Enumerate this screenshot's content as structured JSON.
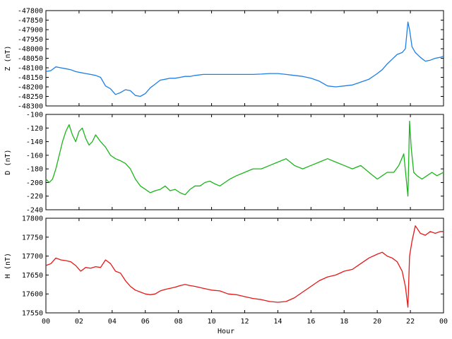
{
  "chart_data": [
    {
      "type": "line",
      "ylabel": "Z (nT)",
      "ylim": [
        -48300,
        -47800
      ],
      "yticks": [
        "-47800",
        "-47850",
        "-47900",
        "-47950",
        "-48000",
        "-48050",
        "-48100",
        "-48150",
        "-48200",
        "-48250",
        "-48300"
      ],
      "color": "#1e7fe6",
      "x": [
        0,
        0.3,
        0.6,
        0.9,
        1.2,
        1.5,
        1.8,
        2.1,
        2.4,
        2.7,
        3.0,
        3.3,
        3.6,
        3.9,
        4.2,
        4.5,
        4.8,
        5.1,
        5.4,
        5.7,
        6.0,
        6.3,
        6.6,
        6.9,
        7.2,
        7.5,
        7.8,
        8.1,
        8.4,
        8.7,
        9.0,
        9.5,
        10,
        10.5,
        11,
        11.5,
        12,
        12.5,
        13,
        13.5,
        14,
        14.5,
        15,
        15.5,
        16,
        16.5,
        17,
        17.5,
        18,
        18.5,
        19,
        19.5,
        20,
        20.3,
        20.6,
        20.9,
        21.2,
        21.5,
        21.7,
        21.85,
        21.95,
        22.1,
        22.3,
        22.6,
        22.9,
        23.2,
        23.5,
        23.8,
        24
      ],
      "values": [
        -48120,
        -48115,
        -48095,
        -48100,
        -48105,
        -48110,
        -48120,
        -48125,
        -48130,
        -48135,
        -48140,
        -48150,
        -48195,
        -48210,
        -48240,
        -48230,
        -48215,
        -48220,
        -48245,
        -48250,
        -48235,
        -48205,
        -48185,
        -48165,
        -48160,
        -48155,
        -48155,
        -48150,
        -48145,
        -48145,
        -48140,
        -48135,
        -48135,
        -48135,
        -48135,
        -48135,
        -48135,
        -48135,
        -48133,
        -48130,
        -48130,
        -48135,
        -48140,
        -48145,
        -48155,
        -48170,
        -48195,
        -48200,
        -48195,
        -48190,
        -48175,
        -48160,
        -48130,
        -48110,
        -48080,
        -48055,
        -48030,
        -48020,
        -48000,
        -47860,
        -47900,
        -47990,
        -48020,
        -48045,
        -48065,
        -48060,
        -48050,
        -48045,
        -48040
      ]
    },
    {
      "type": "line",
      "ylabel": "D (nT)",
      "ylim": [
        -240,
        -100
      ],
      "yticks": [
        "-100",
        "-120",
        "-140",
        "-160",
        "-180",
        "-200",
        "-220",
        "-240"
      ],
      "color": "#1ab51a",
      "x": [
        0,
        0.2,
        0.4,
        0.6,
        0.8,
        1.0,
        1.2,
        1.4,
        1.6,
        1.8,
        2.0,
        2.2,
        2.4,
        2.6,
        2.8,
        3.0,
        3.3,
        3.6,
        3.9,
        4.2,
        4.5,
        4.8,
        5.1,
        5.4,
        5.7,
        6.0,
        6.3,
        6.6,
        6.9,
        7.2,
        7.5,
        7.8,
        8.1,
        8.4,
        8.7,
        9.0,
        9.3,
        9.6,
        9.9,
        10.2,
        10.5,
        10.8,
        11.1,
        11.5,
        12,
        12.5,
        13,
        13.5,
        14,
        14.5,
        15,
        15.5,
        16,
        16.5,
        17,
        17.5,
        18,
        18.5,
        19,
        19.5,
        20,
        20.3,
        20.6,
        21,
        21.3,
        21.6,
        21.75,
        21.85,
        21.95,
        22.05,
        22.2,
        22.4,
        22.7,
        23,
        23.3,
        23.6,
        24
      ],
      "values": [
        -195,
        -200,
        -195,
        -180,
        -160,
        -140,
        -125,
        -115,
        -130,
        -140,
        -125,
        -120,
        -135,
        -145,
        -140,
        -130,
        -140,
        -148,
        -160,
        -165,
        -168,
        -172,
        -180,
        -195,
        -205,
        -210,
        -215,
        -212,
        -210,
        -205,
        -212,
        -210,
        -215,
        -218,
        -210,
        -205,
        -205,
        -200,
        -198,
        -202,
        -205,
        -200,
        -195,
        -190,
        -185,
        -180,
        -180,
        -175,
        -170,
        -165,
        -175,
        -180,
        -175,
        -170,
        -165,
        -170,
        -175,
        -180,
        -175,
        -185,
        -195,
        -190,
        -185,
        -185,
        -175,
        -158,
        -195,
        -220,
        -110,
        -150,
        -185,
        -190,
        -195,
        -190,
        -185,
        -190,
        -185
      ]
    },
    {
      "type": "line",
      "ylabel": "H (nT)",
      "ylim": [
        17550,
        17800
      ],
      "yticks": [
        "17800",
        "17750",
        "17700",
        "17650",
        "17600",
        "17550"
      ],
      "xlabel": "Hour",
      "xticks": [
        "00",
        "02",
        "04",
        "06",
        "08",
        "10",
        "12",
        "14",
        "16",
        "18",
        "20",
        "22",
        "00"
      ],
      "color": "#e61717",
      "x": [
        0,
        0.3,
        0.6,
        0.9,
        1.2,
        1.5,
        1.8,
        2.1,
        2.4,
        2.7,
        3.0,
        3.3,
        3.6,
        3.9,
        4.2,
        4.5,
        4.8,
        5.1,
        5.4,
        5.7,
        6.0,
        6.3,
        6.6,
        6.9,
        7.2,
        7.5,
        7.8,
        8.1,
        8.4,
        8.7,
        9.0,
        9.5,
        10,
        10.5,
        11,
        11.5,
        12,
        12.5,
        13,
        13.5,
        14,
        14.5,
        15,
        15.5,
        16,
        16.5,
        17,
        17.5,
        18,
        18.5,
        19,
        19.5,
        20,
        20.3,
        20.6,
        20.9,
        21.2,
        21.5,
        21.7,
        21.85,
        21.95,
        22.1,
        22.3,
        22.6,
        22.9,
        23.2,
        23.5,
        23.8,
        24
      ],
      "values": [
        17675,
        17680,
        17695,
        17690,
        17688,
        17685,
        17675,
        17660,
        17670,
        17668,
        17672,
        17670,
        17690,
        17680,
        17660,
        17655,
        17635,
        17620,
        17610,
        17605,
        17600,
        17598,
        17600,
        17608,
        17612,
        17615,
        17618,
        17622,
        17625,
        17622,
        17620,
        17615,
        17610,
        17608,
        17600,
        17598,
        17593,
        17588,
        17585,
        17580,
        17578,
        17580,
        17590,
        17605,
        17620,
        17635,
        17645,
        17650,
        17660,
        17665,
        17680,
        17695,
        17705,
        17710,
        17700,
        17695,
        17685,
        17660,
        17620,
        17565,
        17700,
        17740,
        17780,
        17760,
        17755,
        17765,
        17760,
        17765,
        17765
      ]
    }
  ]
}
